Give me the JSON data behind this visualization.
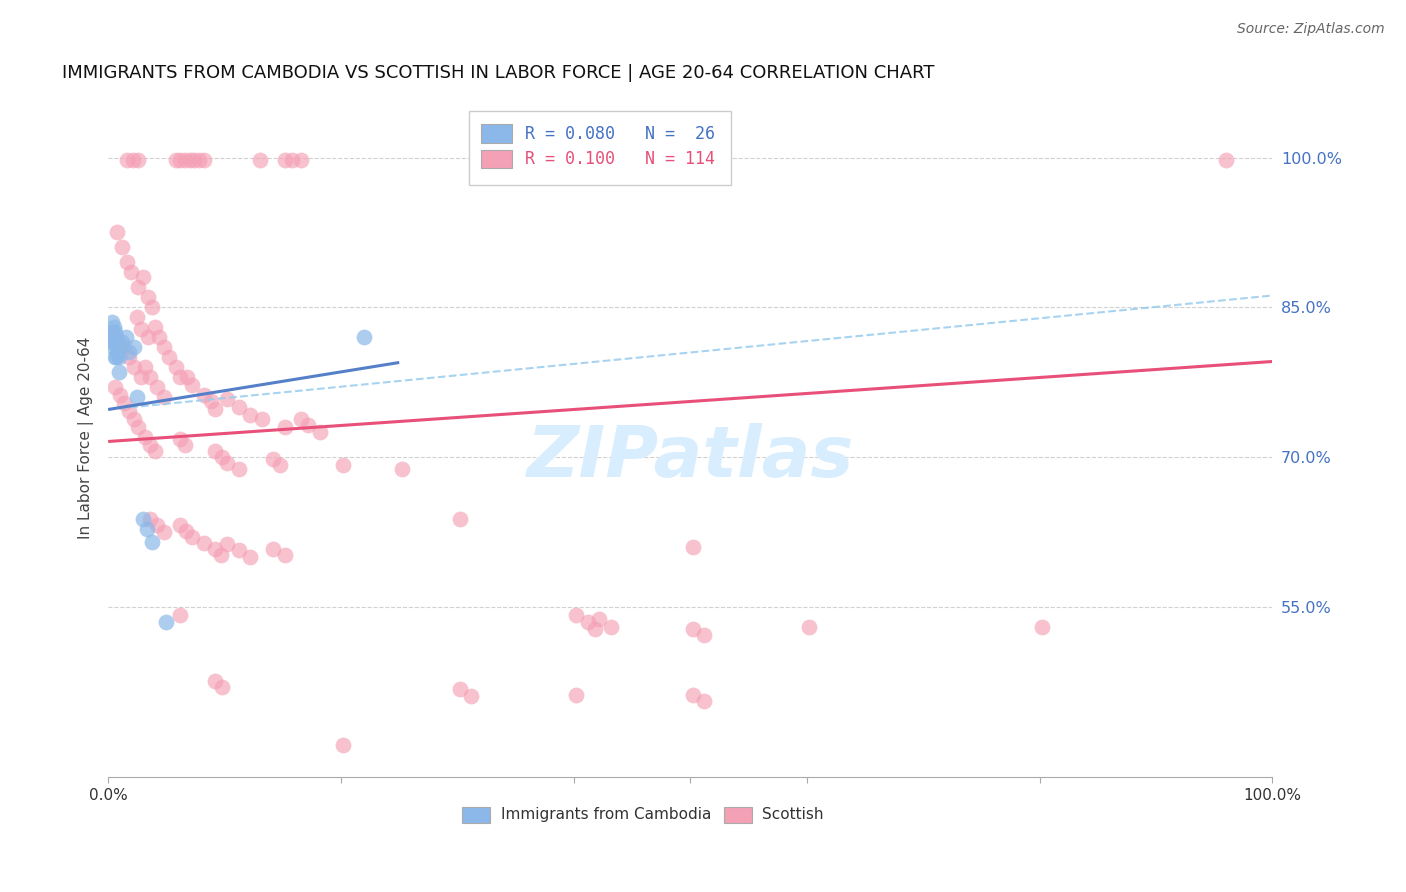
{
  "title": "IMMIGRANTS FROM CAMBODIA VS SCOTTISH IN LABOR FORCE | AGE 20-64 CORRELATION CHART",
  "source": "Source: ZipAtlas.com",
  "ylabel": "In Labor Force | Age 20-64",
  "ytick_labels": [
    "100.0%",
    "85.0%",
    "70.0%",
    "55.0%"
  ],
  "ytick_values": [
    1.0,
    0.85,
    0.7,
    0.55
  ],
  "xlim": [
    0.0,
    1.0
  ],
  "ylim": [
    0.38,
    1.06
  ],
  "color_cambodia": "#8BB8E8",
  "color_scottish": "#F4A0B5",
  "color_line_cambodia": "#5580C8",
  "color_line_scottish": "#E8507A",
  "color_dash": "#99CCEE",
  "watermark_color": "#D8EEFF",
  "cam_line": [
    0.0,
    0.25,
    0.748,
    0.795
  ],
  "scot_line": [
    0.0,
    1.0,
    0.716,
    0.796
  ],
  "dash_line": [
    0.0,
    1.0,
    0.748,
    0.862
  ],
  "cambodia_points": [
    [
      0.002,
      0.82
    ],
    [
      0.003,
      0.835
    ],
    [
      0.003,
      0.815
    ],
    [
      0.004,
      0.825
    ],
    [
      0.004,
      0.81
    ],
    [
      0.005,
      0.83
    ],
    [
      0.005,
      0.815
    ],
    [
      0.006,
      0.825
    ],
    [
      0.006,
      0.8
    ],
    [
      0.007,
      0.82
    ],
    [
      0.007,
      0.8
    ],
    [
      0.008,
      0.815
    ],
    [
      0.008,
      0.805
    ],
    [
      0.009,
      0.8
    ],
    [
      0.009,
      0.785
    ],
    [
      0.01,
      0.81
    ],
    [
      0.012,
      0.815
    ],
    [
      0.015,
      0.82
    ],
    [
      0.018,
      0.805
    ],
    [
      0.022,
      0.81
    ],
    [
      0.025,
      0.76
    ],
    [
      0.03,
      0.638
    ],
    [
      0.033,
      0.628
    ],
    [
      0.038,
      0.615
    ],
    [
      0.22,
      0.82
    ],
    [
      0.05,
      0.535
    ]
  ],
  "scottish_points": [
    [
      0.016,
      0.998
    ],
    [
      0.021,
      0.998
    ],
    [
      0.026,
      0.998
    ],
    [
      0.058,
      0.998
    ],
    [
      0.062,
      0.998
    ],
    [
      0.066,
      0.998
    ],
    [
      0.07,
      0.998
    ],
    [
      0.074,
      0.998
    ],
    [
      0.078,
      0.998
    ],
    [
      0.082,
      0.998
    ],
    [
      0.13,
      0.998
    ],
    [
      0.152,
      0.998
    ],
    [
      0.158,
      0.998
    ],
    [
      0.166,
      0.998
    ],
    [
      0.96,
      0.998
    ],
    [
      0.008,
      0.925
    ],
    [
      0.012,
      0.91
    ],
    [
      0.016,
      0.895
    ],
    [
      0.02,
      0.885
    ],
    [
      0.026,
      0.87
    ],
    [
      0.03,
      0.88
    ],
    [
      0.034,
      0.86
    ],
    [
      0.038,
      0.85
    ],
    [
      0.025,
      0.84
    ],
    [
      0.028,
      0.828
    ],
    [
      0.034,
      0.82
    ],
    [
      0.04,
      0.83
    ],
    [
      0.044,
      0.82
    ],
    [
      0.048,
      0.81
    ],
    [
      0.052,
      0.8
    ],
    [
      0.058,
      0.79
    ],
    [
      0.062,
      0.78
    ],
    [
      0.014,
      0.81
    ],
    [
      0.018,
      0.8
    ],
    [
      0.022,
      0.79
    ],
    [
      0.028,
      0.78
    ],
    [
      0.032,
      0.79
    ],
    [
      0.036,
      0.78
    ],
    [
      0.042,
      0.77
    ],
    [
      0.048,
      0.76
    ],
    [
      0.068,
      0.78
    ],
    [
      0.072,
      0.772
    ],
    [
      0.082,
      0.762
    ],
    [
      0.088,
      0.756
    ],
    [
      0.092,
      0.748
    ],
    [
      0.102,
      0.758
    ],
    [
      0.112,
      0.75
    ],
    [
      0.122,
      0.742
    ],
    [
      0.132,
      0.738
    ],
    [
      0.152,
      0.73
    ],
    [
      0.166,
      0.738
    ],
    [
      0.172,
      0.732
    ],
    [
      0.182,
      0.725
    ],
    [
      0.006,
      0.77
    ],
    [
      0.01,
      0.762
    ],
    [
      0.014,
      0.754
    ],
    [
      0.018,
      0.746
    ],
    [
      0.022,
      0.738
    ],
    [
      0.026,
      0.73
    ],
    [
      0.032,
      0.72
    ],
    [
      0.036,
      0.712
    ],
    [
      0.04,
      0.706
    ],
    [
      0.062,
      0.718
    ],
    [
      0.066,
      0.712
    ],
    [
      0.092,
      0.706
    ],
    [
      0.098,
      0.7
    ],
    [
      0.102,
      0.694
    ],
    [
      0.112,
      0.688
    ],
    [
      0.142,
      0.698
    ],
    [
      0.148,
      0.692
    ],
    [
      0.202,
      0.692
    ],
    [
      0.252,
      0.688
    ],
    [
      0.036,
      0.638
    ],
    [
      0.042,
      0.632
    ],
    [
      0.048,
      0.625
    ],
    [
      0.062,
      0.632
    ],
    [
      0.067,
      0.626
    ],
    [
      0.072,
      0.62
    ],
    [
      0.082,
      0.614
    ],
    [
      0.092,
      0.608
    ],
    [
      0.097,
      0.602
    ],
    [
      0.102,
      0.613
    ],
    [
      0.112,
      0.607
    ],
    [
      0.122,
      0.6
    ],
    [
      0.142,
      0.608
    ],
    [
      0.152,
      0.602
    ],
    [
      0.302,
      0.638
    ],
    [
      0.402,
      0.542
    ],
    [
      0.412,
      0.535
    ],
    [
      0.418,
      0.528
    ],
    [
      0.422,
      0.538
    ],
    [
      0.432,
      0.53
    ],
    [
      0.502,
      0.528
    ],
    [
      0.512,
      0.522
    ],
    [
      0.602,
      0.53
    ],
    [
      0.062,
      0.542
    ],
    [
      0.092,
      0.476
    ],
    [
      0.098,
      0.47
    ],
    [
      0.302,
      0.468
    ],
    [
      0.312,
      0.461
    ],
    [
      0.502,
      0.462
    ],
    [
      0.512,
      0.456
    ],
    [
      0.202,
      0.412
    ],
    [
      0.802,
      0.53
    ],
    [
      0.402,
      0.462
    ],
    [
      0.502,
      0.61
    ]
  ]
}
